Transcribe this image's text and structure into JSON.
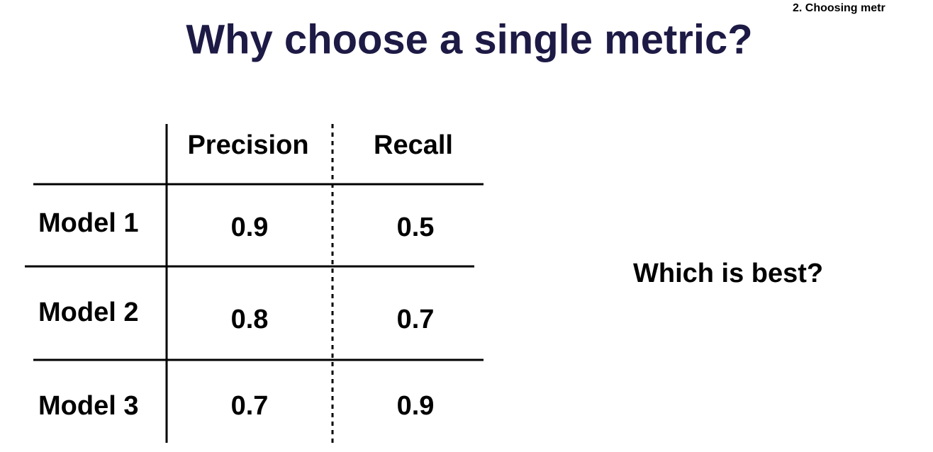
{
  "header": {
    "section": "2. Choosing metr",
    "title": "Why choose a single metric?"
  },
  "table": {
    "columns": [
      "Precision",
      "Recall"
    ],
    "rows": [
      [
        "Model 1",
        "0.9",
        "0.5"
      ],
      [
        "Model 2",
        "0.8",
        "0.7"
      ],
      [
        "Model 3",
        "0.7",
        "0.9"
      ]
    ]
  },
  "note": "Which is best?"
}
